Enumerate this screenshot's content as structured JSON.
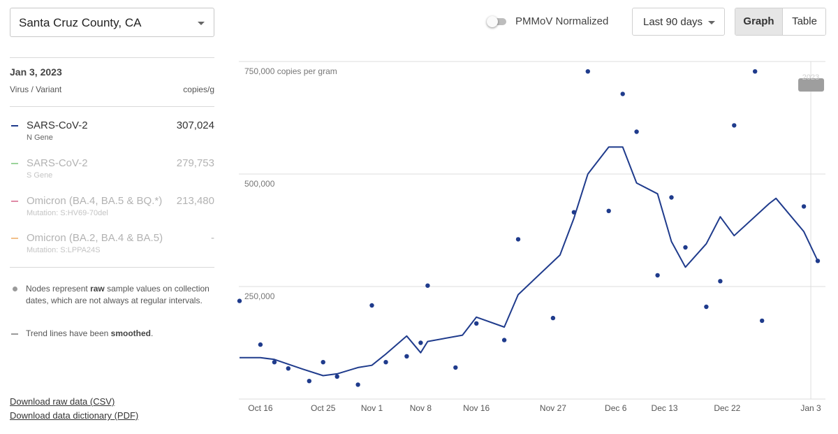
{
  "location": {
    "selected": "Santa Cruz County, CA"
  },
  "controls": {
    "pmmov_label": "PMMoV Normalized",
    "pmmov_on": false,
    "range_selected": "Last 90 days",
    "view_graph": "Graph",
    "view_table": "Table",
    "view_active": "Graph"
  },
  "panel": {
    "date": "Jan 3, 2023",
    "col_left": "Virus / Variant",
    "col_right": "copies/g",
    "items": [
      {
        "name": "SARS-CoV-2",
        "sub": "N Gene",
        "value": "307,024",
        "color": "#1f3b8c",
        "active": true
      },
      {
        "name": "SARS-CoV-2",
        "sub": "S Gene",
        "value": "279,753",
        "color": "#9bd49b",
        "active": false
      },
      {
        "name": "Omicron (BA.4, BA.5 & BQ.*)",
        "sub": "Mutation: S:HV69-70del",
        "value": "213,480",
        "color": "#e08aa6",
        "active": false
      },
      {
        "name": "Omicron (BA.2, BA.4 & BA.5)",
        "sub": "Mutation: S:LPPA24S",
        "value": "-",
        "color": "#f2c08a",
        "active": false
      }
    ],
    "note1_pre": "Nodes represent ",
    "note1_bold": "raw",
    "note1_post": " sample values on collection dates, which are not always at regular intervals.",
    "note2_pre": "Trend lines have been ",
    "note2_bold": "smoothed",
    "note2_post": ".",
    "download_csv": "Download raw data (CSV)",
    "download_pdf": "Download data dictionary (PDF)"
  },
  "chart_data": {
    "type": "scatter",
    "unit": "copies per gram",
    "ylim": [
      0,
      750000
    ],
    "ytick_labels": [
      "250,000",
      "500,000",
      "750,000 copies per gram"
    ],
    "yticks": [
      250000,
      500000,
      750000
    ],
    "xlim": [
      "2022-10-13",
      "2023-01-05"
    ],
    "x_tick_labels": [
      "Oct 16",
      "Oct 25",
      "Nov 1",
      "Nov 8",
      "Nov 16",
      "Nov 27",
      "Dec 6",
      "Dec 13",
      "Dec 22",
      "Jan 3"
    ],
    "x_tick_dates": [
      "2022-10-16",
      "2022-10-25",
      "2022-11-01",
      "2022-11-08",
      "2022-11-16",
      "2022-11-27",
      "2022-12-06",
      "2022-12-13",
      "2022-12-22",
      "2023-01-03"
    ],
    "year_marker": {
      "date": "2023-01-03",
      "label": "2023"
    },
    "grid": true,
    "series": [
      {
        "name": "SARS-CoV-2",
        "color": "#1f3b8c",
        "points": [
          [
            "2022-10-13",
            218000
          ],
          [
            "2022-10-16",
            121000
          ],
          [
            "2022-10-18",
            82000
          ],
          [
            "2022-10-20",
            68000
          ],
          [
            "2022-10-23",
            40000
          ],
          [
            "2022-10-25",
            82000
          ],
          [
            "2022-10-27",
            50000
          ],
          [
            "2022-10-30",
            32000
          ],
          [
            "2022-11-01",
            208000
          ],
          [
            "2022-11-03",
            82000
          ],
          [
            "2022-11-06",
            95000
          ],
          [
            "2022-11-08",
            125000
          ],
          [
            "2022-11-09",
            252000
          ],
          [
            "2022-11-13",
            70000
          ],
          [
            "2022-11-16",
            168000
          ],
          [
            "2022-11-20",
            131000
          ],
          [
            "2022-11-22",
            355000
          ],
          [
            "2022-11-27",
            180000
          ],
          [
            "2022-11-30",
            415000
          ],
          [
            "2022-12-02",
            728000
          ],
          [
            "2022-12-05",
            418000
          ],
          [
            "2022-12-07",
            678000
          ],
          [
            "2022-12-09",
            594000
          ],
          [
            "2022-12-12",
            275000
          ],
          [
            "2022-12-14",
            448000
          ],
          [
            "2022-12-16",
            337000
          ],
          [
            "2022-12-19",
            205000
          ],
          [
            "2022-12-21",
            262000
          ],
          [
            "2022-12-23",
            608000
          ],
          [
            "2022-12-26",
            728000
          ],
          [
            "2022-12-27",
            174000
          ],
          [
            "2023-01-02",
            428000
          ],
          [
            "2023-01-04",
            307024
          ]
        ],
        "trend": [
          [
            "2022-10-13",
            92000
          ],
          [
            "2022-10-16",
            92000
          ],
          [
            "2022-10-18",
            88000
          ],
          [
            "2022-10-22",
            67000
          ],
          [
            "2022-10-25",
            52000
          ],
          [
            "2022-10-27",
            56000
          ],
          [
            "2022-10-30",
            70000
          ],
          [
            "2022-11-01",
            75000
          ],
          [
            "2022-11-03",
            100000
          ],
          [
            "2022-11-06",
            140000
          ],
          [
            "2022-11-08",
            103000
          ],
          [
            "2022-11-09",
            128000
          ],
          [
            "2022-11-14",
            142000
          ],
          [
            "2022-11-16",
            182000
          ],
          [
            "2022-11-20",
            160000
          ],
          [
            "2022-11-22",
            232000
          ],
          [
            "2022-11-28",
            320000
          ],
          [
            "2022-11-30",
            402000
          ],
          [
            "2022-12-02",
            500000
          ],
          [
            "2022-12-05",
            560000
          ],
          [
            "2022-12-07",
            560000
          ],
          [
            "2022-12-09",
            480000
          ],
          [
            "2022-12-12",
            456000
          ],
          [
            "2022-12-14",
            350000
          ],
          [
            "2022-12-16",
            293000
          ],
          [
            "2022-12-19",
            345000
          ],
          [
            "2022-12-21",
            405000
          ],
          [
            "2022-12-23",
            363000
          ],
          [
            "2022-12-28",
            434000
          ],
          [
            "2022-12-29",
            446000
          ],
          [
            "2023-01-02",
            372000
          ],
          [
            "2023-01-04",
            307024
          ]
        ]
      }
    ]
  }
}
